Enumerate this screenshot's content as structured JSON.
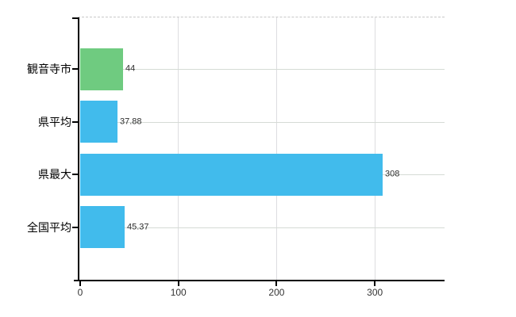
{
  "chart_data": {
    "type": "bar",
    "orientation": "horizontal",
    "categories": [
      "観音寺市",
      "県平均",
      "県最大",
      "全国平均"
    ],
    "values": [
      44,
      37.88,
      308,
      45.37
    ],
    "value_labels": [
      "44",
      "37.88",
      "308",
      "45.37"
    ],
    "bar_colors": [
      "#6fcb80",
      "#41bbec",
      "#41bbec",
      "#41bbec"
    ],
    "x_ticks": [
      0,
      100,
      200,
      300
    ],
    "x_tick_labels": [
      "0",
      "100",
      "200",
      "300"
    ],
    "xlim": [
      0,
      371
    ],
    "grid": true,
    "legend": false,
    "title": "",
    "xlabel": "",
    "ylabel": ""
  },
  "colors": {
    "background": "#ffffff",
    "axis": "#000000",
    "h_gridline": "#d5dbd5",
    "v_gridline": "#dddde0",
    "top_border_dashed": "#c8c8c8",
    "category_text": "#000000",
    "value_text": "#2e2e2e",
    "tick_text": "#333333",
    "bar_blue": "#41bbec",
    "bar_green": "#6fcb80"
  }
}
